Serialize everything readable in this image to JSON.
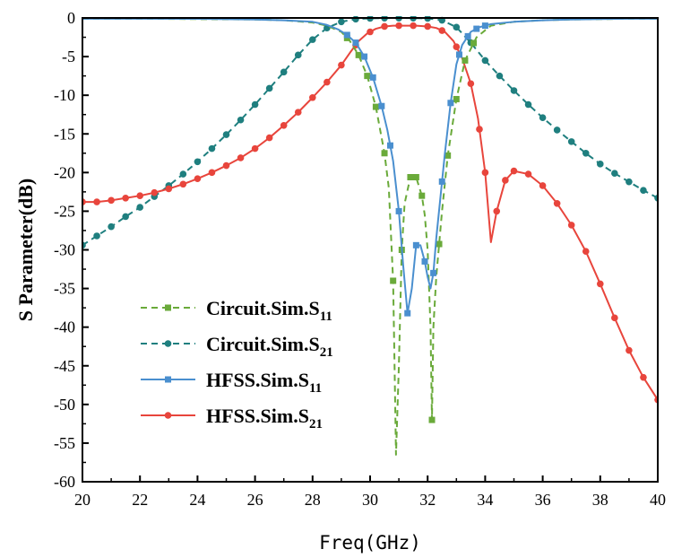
{
  "chart_data": {
    "type": "line",
    "title": "",
    "xlabel": "Freq(GHz)",
    "ylabel": "S Parameter(dB)",
    "xlim": [
      20,
      40
    ],
    "ylim": [
      -60,
      0
    ],
    "xticks": [
      20,
      22,
      24,
      26,
      28,
      30,
      32,
      34,
      36,
      38,
      40
    ],
    "yticks": [
      0,
      -5,
      -10,
      -15,
      -20,
      -25,
      -30,
      -35,
      -40,
      -45,
      -50,
      -55,
      -60
    ],
    "grid": false,
    "legend_position": "lower-left",
    "series": [
      {
        "name": "Circuit.Sim.S11",
        "name_base": "Circuit.Sim.S",
        "name_sub": "11",
        "color": "#6aaa3a",
        "line_style": "dashed",
        "marker": "square",
        "x": [
          20,
          22,
          24,
          26,
          27,
          28,
          28.5,
          29,
          29.3,
          29.6,
          29.9,
          30.2,
          30.5,
          30.65,
          30.8,
          30.85,
          30.9,
          31.0,
          31.1,
          31.2,
          31.4,
          31.6,
          31.8,
          31.9,
          32.0,
          32.1,
          32.15,
          32.2,
          32.3,
          32.5,
          32.7,
          33.0,
          33.3,
          33.7,
          34.2,
          35,
          36,
          37,
          38,
          39,
          40
        ],
        "y": [
          -0.1,
          -0.1,
          -0.15,
          -0.2,
          -0.3,
          -0.6,
          -1.0,
          -1.8,
          -3.0,
          -4.8,
          -7.5,
          -11.5,
          -17.5,
          -22,
          -34,
          -45,
          -56.5,
          -45,
          -30,
          -24,
          -20.6,
          -20.6,
          -23,
          -25.5,
          -30,
          -40,
          -52,
          -40,
          -33.5,
          -25,
          -17.8,
          -10.5,
          -5.5,
          -2.5,
          -1.0,
          -0.5,
          -0.3,
          -0.2,
          -0.15,
          -0.1,
          -0.1
        ],
        "marker_x": [
          29.2,
          29.6,
          29.9,
          30.2,
          30.5,
          30.8,
          31.1,
          31.4,
          31.6,
          31.8,
          32.15,
          32.4,
          32.7,
          33.0,
          33.3,
          33.6
        ]
      },
      {
        "name": "Circuit.Sim.S21",
        "name_base": "Circuit.Sim.S",
        "name_sub": "21",
        "color": "#1f7f7f",
        "line_style": "dashed",
        "marker": "circle",
        "x": [
          20,
          20.5,
          21,
          21.5,
          22,
          22.5,
          23,
          23.5,
          24,
          24.5,
          25,
          25.5,
          26,
          26.5,
          27,
          27.5,
          28,
          28.5,
          29,
          29.5,
          30,
          30.5,
          31,
          31.5,
          32,
          32.5,
          33,
          33.5,
          34,
          34.5,
          35,
          35.5,
          36,
          36.5,
          37,
          37.5,
          38,
          38.5,
          39,
          39.5,
          40
        ],
        "y": [
          -29.4,
          -28.2,
          -27,
          -25.7,
          -24.5,
          -23.1,
          -21.7,
          -20.2,
          -18.6,
          -16.9,
          -15.1,
          -13.2,
          -11.2,
          -9.1,
          -7,
          -4.8,
          -2.8,
          -1.3,
          -0.5,
          -0.15,
          -0.05,
          -0.02,
          -0.02,
          -0.02,
          -0.05,
          -0.3,
          -1.2,
          -3.2,
          -5.5,
          -7.5,
          -9.4,
          -11.2,
          -12.9,
          -14.5,
          -16,
          -17.5,
          -18.9,
          -20.1,
          -21.2,
          -22.3,
          -23.3
        ]
      },
      {
        "name": "HFSS.Sim.S11",
        "name_base": "HFSS.Sim.S",
        "name_sub": "11",
        "color": "#4a8fcf",
        "line_style": "solid",
        "marker": "square",
        "x": [
          20,
          22,
          24,
          26,
          27,
          28,
          28.5,
          28.9,
          29.2,
          29.5,
          29.8,
          30.1,
          30.4,
          30.6,
          30.8,
          31.0,
          31.15,
          31.3,
          31.45,
          31.6,
          31.75,
          31.9,
          32.0,
          32.1,
          32.2,
          32.3,
          32.45,
          32.6,
          32.8,
          33.0,
          33.2,
          33.5,
          33.8,
          34.2,
          35,
          36,
          37,
          38,
          39,
          40
        ],
        "y": [
          -0.1,
          -0.1,
          -0.12,
          -0.2,
          -0.3,
          -0.5,
          -0.9,
          -1.5,
          -2.2,
          -3.2,
          -5,
          -7.7,
          -11.4,
          -14.5,
          -18.5,
          -25,
          -32,
          -38.2,
          -35,
          -29.4,
          -29.4,
          -31.5,
          -33.5,
          -35,
          -33,
          -28.5,
          -23,
          -17.5,
          -11,
          -6,
          -3.5,
          -1.8,
          -1.2,
          -0.8,
          -0.5,
          -0.3,
          -0.2,
          -0.15,
          -0.1,
          -0.1
        ],
        "marker_x": [
          29.2,
          29.5,
          29.8,
          30.1,
          30.4,
          30.7,
          31.0,
          31.3,
          31.6,
          31.9,
          32.2,
          32.5,
          32.8,
          33.1,
          33.4,
          33.7,
          34.0
        ]
      },
      {
        "name": "HFSS.Sim.S21",
        "name_base": "HFSS.Sim.S",
        "name_sub": "21",
        "color": "#e8453c",
        "line_style": "solid",
        "marker": "circle",
        "x": [
          20,
          20.5,
          21,
          21.5,
          22,
          22.5,
          23,
          23.5,
          24,
          24.5,
          25,
          25.5,
          26,
          26.5,
          27,
          27.5,
          28,
          28.5,
          29,
          29.3,
          29.6,
          29.9,
          30.2,
          30.5,
          30.8,
          31.2,
          31.6,
          32,
          32.3,
          32.6,
          32.9,
          33.2,
          33.5,
          33.75,
          34.0,
          34.2,
          34.4,
          34.7,
          35.0,
          35.5,
          36,
          36.5,
          37,
          37.5,
          38,
          38.5,
          39,
          39.5,
          40
        ],
        "y": [
          -23.8,
          -23.8,
          -23.6,
          -23.3,
          -23.0,
          -22.6,
          -22.1,
          -21.5,
          -20.8,
          -20.0,
          -19.1,
          -18.1,
          -16.9,
          -15.5,
          -13.9,
          -12.2,
          -10.3,
          -8.3,
          -6.1,
          -4.5,
          -3.0,
          -2.0,
          -1.4,
          -1.1,
          -1.0,
          -1.0,
          -1.0,
          -1.1,
          -1.3,
          -1.8,
          -3.0,
          -5.2,
          -8.5,
          -13,
          -20,
          -29,
          -25,
          -21,
          -19.8,
          -20.2,
          -21.7,
          -24.0,
          -26.8,
          -30.2,
          -34.4,
          -38.8,
          -43.0,
          -46.5,
          -49.4
        ],
        "marker_x": [
          20,
          20.5,
          21,
          21.5,
          22,
          22.5,
          23,
          23.5,
          24,
          24.5,
          25,
          25.5,
          26,
          26.5,
          27,
          27.5,
          28,
          28.5,
          29,
          29.5,
          30,
          30.5,
          31,
          31.5,
          32,
          32.5,
          33,
          33.5,
          33.8,
          34.0,
          34.4,
          34.7,
          35.0,
          35.5,
          36,
          36.5,
          37,
          37.5,
          38,
          38.5,
          39,
          39.5,
          40
        ]
      }
    ]
  }
}
